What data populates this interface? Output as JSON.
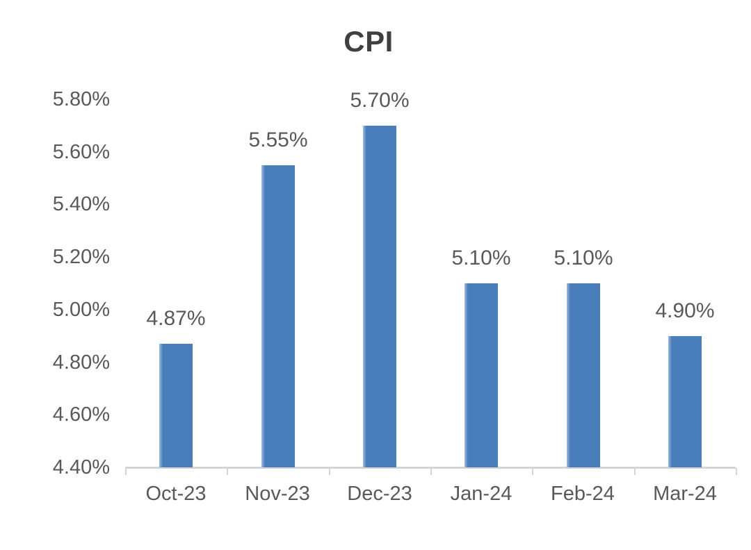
{
  "chart_data": {
    "type": "bar",
    "title": "CPI",
    "categories": [
      "Oct-23",
      "Nov-23",
      "Dec-23",
      "Jan-24",
      "Feb-24",
      "Mar-24"
    ],
    "values": [
      4.87,
      5.55,
      5.7,
      5.1,
      5.1,
      4.9
    ],
    "data_labels": [
      "4.87%",
      "5.55%",
      "5.70%",
      "5.10%",
      "5.10%",
      "4.90%"
    ],
    "y_tick_labels": [
      "5.80%",
      "5.60%",
      "5.40%",
      "5.20%",
      "5.00%",
      "4.80%",
      "4.60%",
      "4.40%"
    ],
    "y_tick_values": [
      5.8,
      5.6,
      5.4,
      5.2,
      5.0,
      4.8,
      4.6,
      4.4
    ],
    "ylim": [
      4.4,
      5.8
    ],
    "xlabel": "",
    "ylabel": "",
    "grid": false,
    "legend": "none",
    "colors": {
      "bar": "#4A7EBB",
      "bar_edge_highlight": "#9DBADF",
      "axis_line": "#D5D5D5",
      "tick_label": "#595959",
      "data_label": "#595959",
      "title": "#404040",
      "background": "#FFFFFF"
    }
  }
}
